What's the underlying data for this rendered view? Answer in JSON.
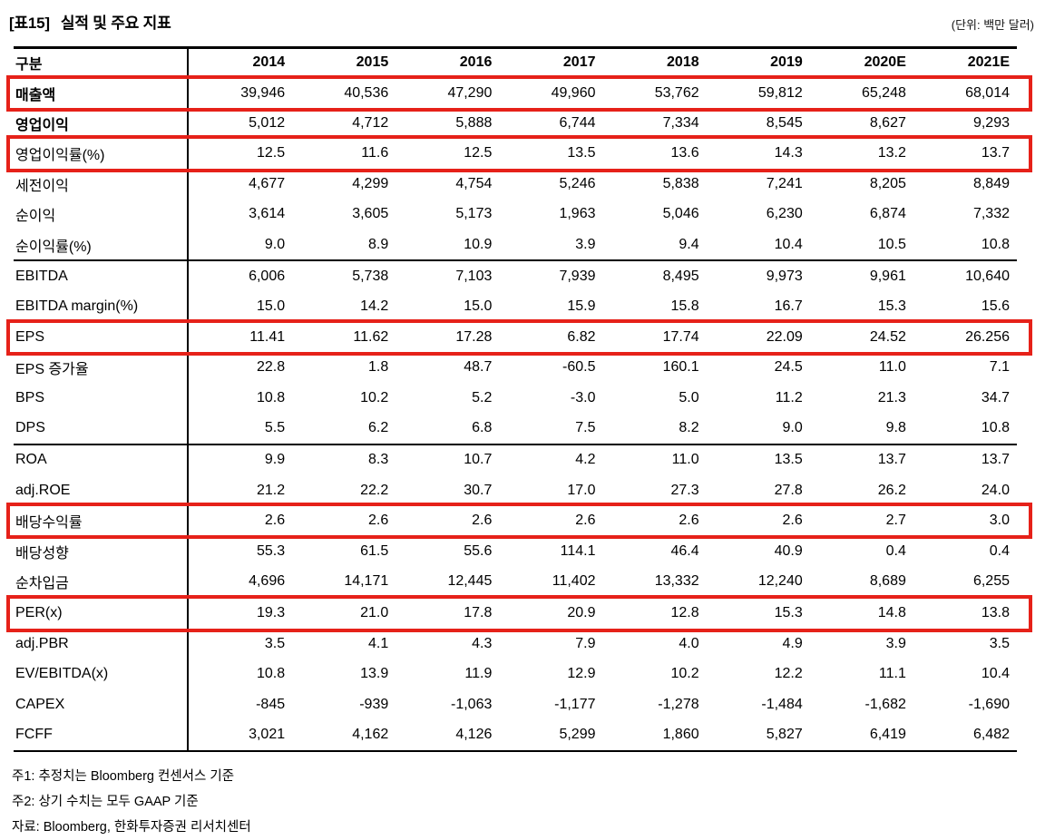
{
  "header": {
    "tag": "[표15]",
    "title": "실적 및 주요 지표",
    "unit": "(단위: 백만 달러)"
  },
  "colors": {
    "highlight_red": "#e62119",
    "line_black": "#000000"
  },
  "table": {
    "columns": [
      "구분",
      "2014",
      "2015",
      "2016",
      "2017",
      "2018",
      "2019",
      "2020E",
      "2021E"
    ],
    "rows": [
      {
        "label": "매출액",
        "values": [
          "39,946",
          "40,536",
          "47,290",
          "49,960",
          "53,762",
          "59,812",
          "65,248",
          "68,014"
        ],
        "highlighted": true,
        "bold": true
      },
      {
        "label": "영업이익",
        "values": [
          "5,012",
          "4,712",
          "5,888",
          "6,744",
          "7,334",
          "8,545",
          "8,627",
          "9,293"
        ],
        "bold": true
      },
      {
        "label": "영업이익률(%)",
        "values": [
          "12.5",
          "11.6",
          "12.5",
          "13.5",
          "13.6",
          "14.3",
          "13.2",
          "13.7"
        ],
        "highlighted": true
      },
      {
        "label": "세전이익",
        "values": [
          "4,677",
          "4,299",
          "4,754",
          "5,246",
          "5,838",
          "7,241",
          "8,205",
          "8,849"
        ]
      },
      {
        "label": "순이익",
        "values": [
          "3,614",
          "3,605",
          "5,173",
          "1,963",
          "5,046",
          "6,230",
          "6,874",
          "7,332"
        ]
      },
      {
        "label": "순이익률(%)",
        "values": [
          "9.0",
          "8.9",
          "10.9",
          "3.9",
          "9.4",
          "10.4",
          "10.5",
          "10.8"
        ]
      },
      {
        "label": "EBITDA",
        "values": [
          "6,006",
          "5,738",
          "7,103",
          "7,939",
          "8,495",
          "9,973",
          "9,961",
          "10,640"
        ],
        "section_start": true
      },
      {
        "label": "EBITDA margin(%)",
        "values": [
          "15.0",
          "14.2",
          "15.0",
          "15.9",
          "15.8",
          "16.7",
          "15.3",
          "15.6"
        ]
      },
      {
        "label": "EPS",
        "values": [
          "11.41",
          "11.62",
          "17.28",
          "6.82",
          "17.74",
          "22.09",
          "24.52",
          "26.256"
        ],
        "highlighted": true
      },
      {
        "label": "EPS 증가율",
        "values": [
          "22.8",
          "1.8",
          "48.7",
          "-60.5",
          "160.1",
          "24.5",
          "11.0",
          "7.1"
        ]
      },
      {
        "label": "BPS",
        "values": [
          "10.8",
          "10.2",
          "5.2",
          "-3.0",
          "5.0",
          "11.2",
          "21.3",
          "34.7"
        ]
      },
      {
        "label": "DPS",
        "values": [
          "5.5",
          "6.2",
          "6.8",
          "7.5",
          "8.2",
          "9.0",
          "9.8",
          "10.8"
        ]
      },
      {
        "label": "ROA",
        "values": [
          "9.9",
          "8.3",
          "10.7",
          "4.2",
          "11.0",
          "13.5",
          "13.7",
          "13.7"
        ],
        "section_start": true
      },
      {
        "label": "adj.ROE",
        "values": [
          "21.2",
          "22.2",
          "30.7",
          "17.0",
          "27.3",
          "27.8",
          "26.2",
          "24.0"
        ]
      },
      {
        "label": "배당수익률",
        "values": [
          "2.6",
          "2.6",
          "2.6",
          "2.6",
          "2.6",
          "2.6",
          "2.7",
          "3.0"
        ],
        "highlighted": true
      },
      {
        "label": "배당성향",
        "values": [
          "55.3",
          "61.5",
          "55.6",
          "114.1",
          "46.4",
          "40.9",
          "0.4",
          "0.4"
        ]
      },
      {
        "label": "순차입금",
        "values": [
          "4,696",
          "14,171",
          "12,445",
          "11,402",
          "13,332",
          "12,240",
          "8,689",
          "6,255"
        ]
      },
      {
        "label": "PER(x)",
        "values": [
          "19.3",
          "21.0",
          "17.8",
          "20.9",
          "12.8",
          "15.3",
          "14.8",
          "13.8"
        ],
        "highlighted": true,
        "section_start": true
      },
      {
        "label": "adj.PBR",
        "values": [
          "3.5",
          "4.1",
          "4.3",
          "7.9",
          "4.0",
          "4.9",
          "3.9",
          "3.5"
        ]
      },
      {
        "label": "EV/EBITDA(x)",
        "values": [
          "10.8",
          "13.9",
          "11.9",
          "12.9",
          "10.2",
          "12.2",
          "11.1",
          "10.4"
        ]
      },
      {
        "label": "CAPEX",
        "values": [
          "-845",
          "-939",
          "-1,063",
          "-1,177",
          "-1,278",
          "-1,484",
          "-1,682",
          "-1,690"
        ]
      },
      {
        "label": "FCFF",
        "values": [
          "3,021",
          "4,162",
          "4,126",
          "5,299",
          "1,860",
          "5,827",
          "6,419",
          "6,482"
        ]
      }
    ]
  },
  "footnotes": [
    "주1: 추정치는 Bloomberg 컨센서스 기준",
    "주2: 상기 수치는 모두 GAAP 기준",
    "자료: Bloomberg, 한화투자증권 리서치센터"
  ]
}
